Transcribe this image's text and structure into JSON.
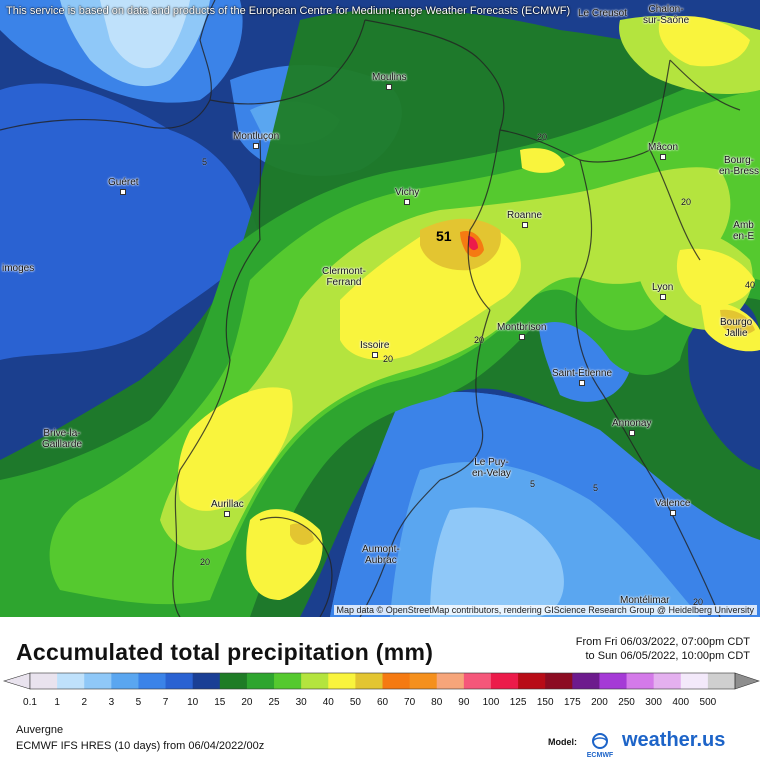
{
  "map": {
    "notice": "This service is based on data and products of the European Centre for Medium-range Weather Forecasts (ECMWF)",
    "attribution": "Map data © OpenStreetMap contributors, rendering GIScience Research Group @ Heidelberg University",
    "max_value": "51",
    "cities": [
      {
        "name": "Guéret"
      },
      {
        "name": "Montluçon"
      },
      {
        "name": "Moulins"
      },
      {
        "name": "Vichy"
      },
      {
        "name": "Roanne"
      },
      {
        "name": "Mâcon"
      },
      {
        "name": "Bourg-\nen-Bress"
      },
      {
        "name": "Amb\nen-E"
      },
      {
        "name": "imoges"
      },
      {
        "name": "Clermont-\nFerrand"
      },
      {
        "name": "Lyon"
      },
      {
        "name": "Bourgo\nJallie"
      },
      {
        "name": "Montbrison"
      },
      {
        "name": "Issoire"
      },
      {
        "name": "Saint-Étienne"
      },
      {
        "name": "Brive-la-\nGaillarde"
      },
      {
        "name": "Annonay"
      },
      {
        "name": "Le Puy-\nen-Velay"
      },
      {
        "name": "Aurillac"
      },
      {
        "name": "Valence"
      },
      {
        "name": "Aumont-\nAubrac"
      },
      {
        "name": "Montélimar"
      },
      {
        "name": "Le Creusot"
      },
      {
        "name": "Chalon-\nsur-Saône"
      }
    ],
    "contour_labels": [
      "5",
      "20",
      "20",
      "20",
      "20",
      "20",
      "5",
      "5",
      "20",
      "40"
    ]
  },
  "legend": {
    "title": "Accumulated total precipitation (mm)",
    "period_from": "From Fri 06/03/2022, 07:00pm CDT",
    "period_to": "to Sun 06/05/2022, 10:00pm CDT",
    "scale_labels": [
      "0.1",
      "1",
      "2",
      "3",
      "5",
      "7",
      "10",
      "15",
      "20",
      "25",
      "30",
      "40",
      "50",
      "60",
      "70",
      "80",
      "90",
      "100",
      "125",
      "150",
      "175",
      "200",
      "250",
      "300",
      "400",
      "500"
    ],
    "scale_colors": [
      "#e9e3ee",
      "#bfe1fb",
      "#8fc8f8",
      "#5aa6f0",
      "#3b83e8",
      "#2a62d2",
      "#1a3f95",
      "#1f7c26",
      "#2ea52f",
      "#55c92f",
      "#b4e43e",
      "#f9f43d",
      "#e3c531",
      "#f57a12",
      "#f5901d",
      "#f6a57a",
      "#f5577a",
      "#ec1b4a",
      "#b80c17",
      "#8c0c22",
      "#6d1b8d",
      "#a53ad6",
      "#d47ae9",
      "#e4b0ef",
      "#f3e9fa",
      "#cfcfcf"
    ],
    "region": "Auvergne",
    "model_info": "ECMWF IFS HRES (10 days) from 06/04/2022/00z",
    "model_label": "Model:",
    "model_logo_text": "ECMWF",
    "brand": "weather.us"
  }
}
